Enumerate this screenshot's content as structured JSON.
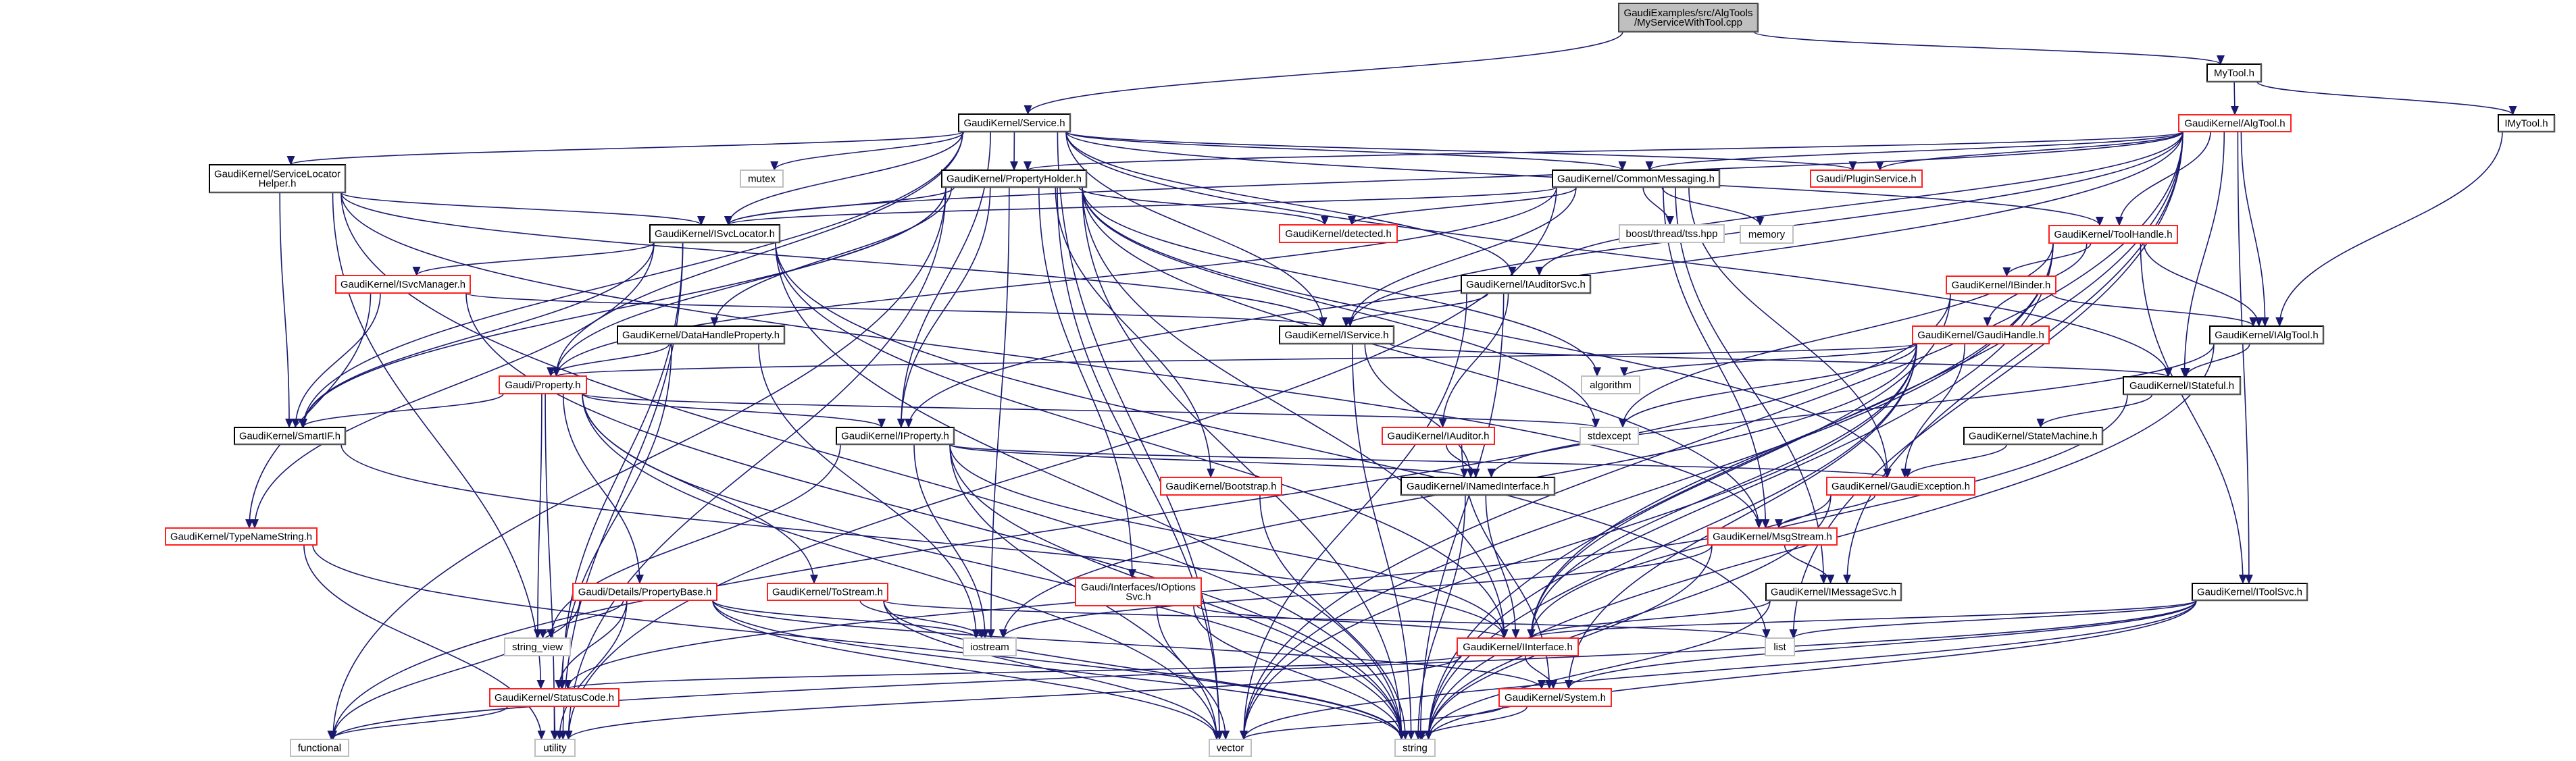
{
  "graph": {
    "edge_color": "#191970",
    "border_colors": {
      "normal": "#000000",
      "incomplete": "#ff0000",
      "system": "#bfbfbf",
      "root_fill": "#bfbfbf"
    },
    "nodes": [
      {
        "id": "root",
        "label": [
          "GaudiExamples/src/AlgTools",
          "/MyServiceWithTool.cpp"
        ],
        "style": "root"
      },
      {
        "id": "mytool",
        "label": [
          "MyTool.h"
        ],
        "style": "normal"
      },
      {
        "id": "imytool",
        "label": [
          "IMyTool.h"
        ],
        "style": "normal"
      },
      {
        "id": "algtool",
        "label": [
          "GaudiKernel/AlgTool.h"
        ],
        "style": "incomplete"
      },
      {
        "id": "service",
        "label": [
          "GaudiKernel/Service.h"
        ],
        "style": "normal"
      },
      {
        "id": "slh",
        "label": [
          "GaudiKernel/ServiceLocator",
          "Helper.h"
        ],
        "style": "normal"
      },
      {
        "id": "mutex",
        "label": [
          "mutex"
        ],
        "style": "system"
      },
      {
        "id": "propholder",
        "label": [
          "GaudiKernel/PropertyHolder.h"
        ],
        "style": "normal"
      },
      {
        "id": "commsg",
        "label": [
          "GaudiKernel/CommonMessaging.h"
        ],
        "style": "normal"
      },
      {
        "id": "plugin",
        "label": [
          "Gaudi/PluginService.h"
        ],
        "style": "incomplete"
      },
      {
        "id": "isvcloc",
        "label": [
          "GaudiKernel/ISvcLocator.h"
        ],
        "style": "normal"
      },
      {
        "id": "detected",
        "label": [
          "GaudiKernel/detected.h"
        ],
        "style": "incomplete"
      },
      {
        "id": "boost",
        "label": [
          "boost/thread/tss.hpp"
        ],
        "style": "system"
      },
      {
        "id": "memory",
        "label": [
          "memory"
        ],
        "style": "system"
      },
      {
        "id": "toolhandle",
        "label": [
          "GaudiKernel/ToolHandle.h"
        ],
        "style": "incomplete"
      },
      {
        "id": "isvcmgr",
        "label": [
          "GaudiKernel/ISvcManager.h"
        ],
        "style": "incomplete"
      },
      {
        "id": "iauditorsvc",
        "label": [
          "GaudiKernel/IAuditorSvc.h"
        ],
        "style": "normal"
      },
      {
        "id": "ibinder",
        "label": [
          "GaudiKernel/IBinder.h"
        ],
        "style": "incomplete"
      },
      {
        "id": "dhp",
        "label": [
          "GaudiKernel/DataHandleProperty.h"
        ],
        "style": "normal"
      },
      {
        "id": "iservice",
        "label": [
          "GaudiKernel/IService.h"
        ],
        "style": "normal"
      },
      {
        "id": "gaudihandle",
        "label": [
          "GaudiKernel/GaudiHandle.h"
        ],
        "style": "incomplete"
      },
      {
        "id": "ialgtool",
        "label": [
          "GaudiKernel/IAlgTool.h"
        ],
        "style": "normal"
      },
      {
        "id": "property",
        "label": [
          "Gaudi/Property.h"
        ],
        "style": "incomplete"
      },
      {
        "id": "algorithm",
        "label": [
          "algorithm"
        ],
        "style": "system"
      },
      {
        "id": "istateful",
        "label": [
          "GaudiKernel/IStateful.h"
        ],
        "style": "normal"
      },
      {
        "id": "smartif",
        "label": [
          "GaudiKernel/SmartIF.h"
        ],
        "style": "normal"
      },
      {
        "id": "iproperty",
        "label": [
          "GaudiKernel/IProperty.h"
        ],
        "style": "normal"
      },
      {
        "id": "iauditor",
        "label": [
          "GaudiKernel/IAuditor.h"
        ],
        "style": "incomplete"
      },
      {
        "id": "stdexcept",
        "label": [
          "stdexcept"
        ],
        "style": "system"
      },
      {
        "id": "statemachine",
        "label": [
          "GaudiKernel/StateMachine.h"
        ],
        "style": "normal"
      },
      {
        "id": "bootstrap",
        "label": [
          "GaudiKernel/Bootstrap.h"
        ],
        "style": "incomplete"
      },
      {
        "id": "inamed",
        "label": [
          "GaudiKernel/INamedInterface.h"
        ],
        "style": "normal"
      },
      {
        "id": "gexc",
        "label": [
          "GaudiKernel/GaudiException.h"
        ],
        "style": "incomplete"
      },
      {
        "id": "typename",
        "label": [
          "GaudiKernel/TypeNameString.h"
        ],
        "style": "incomplete"
      },
      {
        "id": "msgstream",
        "label": [
          "GaudiKernel/MsgStream.h"
        ],
        "style": "incomplete"
      },
      {
        "id": "propbase",
        "label": [
          "Gaudi/Details/PropertyBase.h"
        ],
        "style": "incomplete"
      },
      {
        "id": "tostream",
        "label": [
          "GaudiKernel/ToStream.h"
        ],
        "style": "incomplete"
      },
      {
        "id": "ioptions",
        "label": [
          "Gaudi/Interfaces/IOptions",
          "Svc.h"
        ],
        "style": "incomplete"
      },
      {
        "id": "imsgsvc",
        "label": [
          "GaudiKernel/IMessageSvc.h"
        ],
        "style": "normal"
      },
      {
        "id": "itoolsvc",
        "label": [
          "GaudiKernel/IToolSvc.h"
        ],
        "style": "normal"
      },
      {
        "id": "stringview",
        "label": [
          "string_view"
        ],
        "style": "system"
      },
      {
        "id": "iostream",
        "label": [
          "iostream"
        ],
        "style": "system"
      },
      {
        "id": "iinterface",
        "label": [
          "GaudiKernel/IInterface.h"
        ],
        "style": "incomplete"
      },
      {
        "id": "list",
        "label": [
          "list"
        ],
        "style": "system"
      },
      {
        "id": "statuscode",
        "label": [
          "GaudiKernel/StatusCode.h"
        ],
        "style": "incomplete"
      },
      {
        "id": "system",
        "label": [
          "GaudiKernel/System.h"
        ],
        "style": "incomplete"
      },
      {
        "id": "functional",
        "label": [
          "functional"
        ],
        "style": "system"
      },
      {
        "id": "utility",
        "label": [
          "utility"
        ],
        "style": "system"
      },
      {
        "id": "vector",
        "label": [
          "vector"
        ],
        "style": "system"
      },
      {
        "id": "string",
        "label": [
          "string"
        ],
        "style": "system"
      }
    ],
    "edges": [
      [
        "root",
        "service"
      ],
      [
        "root",
        "mytool"
      ],
      [
        "mytool",
        "algtool"
      ],
      [
        "mytool",
        "imytool"
      ],
      [
        "imytool",
        "ialgtool"
      ],
      [
        "service",
        "slh"
      ],
      [
        "service",
        "mutex"
      ],
      [
        "service",
        "propholder"
      ],
      [
        "service",
        "isvcloc"
      ],
      [
        "service",
        "iservice"
      ],
      [
        "service",
        "iproperty"
      ],
      [
        "service",
        "property"
      ],
      [
        "service",
        "smartif"
      ],
      [
        "service",
        "commsg"
      ],
      [
        "service",
        "iauditorsvc"
      ],
      [
        "service",
        "plugin"
      ],
      [
        "service",
        "toolhandle"
      ],
      [
        "service",
        "istateful"
      ],
      [
        "service",
        "vector"
      ],
      [
        "slh",
        "isvcloc"
      ],
      [
        "slh",
        "iservice"
      ],
      [
        "slh",
        "smartif"
      ],
      [
        "slh",
        "msgstream"
      ],
      [
        "slh",
        "statuscode"
      ],
      [
        "slh",
        "string"
      ],
      [
        "propholder",
        "isvcloc"
      ],
      [
        "propholder",
        "detected"
      ],
      [
        "propholder",
        "property"
      ],
      [
        "propholder",
        "iproperty"
      ],
      [
        "propholder",
        "dhp"
      ],
      [
        "propholder",
        "bootstrap"
      ],
      [
        "propholder",
        "ioptions"
      ],
      [
        "propholder",
        "gexc"
      ],
      [
        "propholder",
        "iinterface"
      ],
      [
        "propholder",
        "msgstream"
      ],
      [
        "propholder",
        "algorithm"
      ],
      [
        "propholder",
        "iostream"
      ],
      [
        "propholder",
        "stdexcept"
      ],
      [
        "propholder",
        "string"
      ],
      [
        "propholder",
        "vector"
      ],
      [
        "propholder",
        "utility"
      ],
      [
        "propholder",
        "functional"
      ],
      [
        "propholder",
        "smartif"
      ],
      [
        "commsg",
        "isvcloc"
      ],
      [
        "commsg",
        "iservice"
      ],
      [
        "commsg",
        "detected"
      ],
      [
        "commsg",
        "boost"
      ],
      [
        "commsg",
        "memory"
      ],
      [
        "commsg",
        "msgstream"
      ],
      [
        "commsg",
        "imsgsvc"
      ],
      [
        "commsg",
        "gexc"
      ],
      [
        "commsg",
        "property"
      ],
      [
        "commsg",
        "utility"
      ],
      [
        "isvcloc",
        "isvcmgr"
      ],
      [
        "isvcloc",
        "smartif"
      ],
      [
        "isvcloc",
        "typename"
      ],
      [
        "isvcloc",
        "iinterface"
      ],
      [
        "isvcloc",
        "statuscode"
      ],
      [
        "isvcloc",
        "list"
      ],
      [
        "isvcloc",
        "string"
      ],
      [
        "isvcloc",
        "utility"
      ],
      [
        "isvcmgr",
        "iservice"
      ],
      [
        "isvcmgr",
        "smartif"
      ],
      [
        "isvcmgr",
        "typename"
      ],
      [
        "isvcmgr",
        "string"
      ],
      [
        "dhp",
        "property"
      ],
      [
        "dhp",
        "statuscode"
      ],
      [
        "dhp",
        "iostream"
      ],
      [
        "property",
        "smartif"
      ],
      [
        "property",
        "iproperty"
      ],
      [
        "property",
        "propbase"
      ],
      [
        "property",
        "tostream"
      ],
      [
        "property",
        "stringview"
      ],
      [
        "property",
        "stdexcept"
      ],
      [
        "property",
        "string"
      ],
      [
        "property",
        "utility"
      ],
      [
        "property",
        "vector"
      ],
      [
        "iauditorsvc",
        "iservice"
      ],
      [
        "iauditorsvc",
        "iauditor"
      ],
      [
        "iauditorsvc",
        "string"
      ],
      [
        "iauditorsvc",
        "vector"
      ],
      [
        "iservice",
        "inamed"
      ],
      [
        "iservice",
        "istateful"
      ],
      [
        "iservice",
        "string"
      ],
      [
        "iauditor",
        "inamed"
      ],
      [
        "iauditor",
        "system"
      ],
      [
        "iproperty",
        "iinterface"
      ],
      [
        "iproperty",
        "inamed"
      ],
      [
        "iproperty",
        "gexc"
      ],
      [
        "iproperty",
        "stringview"
      ],
      [
        "iproperty",
        "iostream"
      ],
      [
        "iproperty",
        "string"
      ],
      [
        "iproperty",
        "vector"
      ],
      [
        "smartif",
        "iinterface"
      ],
      [
        "typename",
        "string"
      ],
      [
        "typename",
        "utility"
      ],
      [
        "propbase",
        "stringview"
      ],
      [
        "propbase",
        "statuscode"
      ],
      [
        "propbase",
        "functional"
      ],
      [
        "propbase",
        "utility"
      ],
      [
        "propbase",
        "string"
      ],
      [
        "propbase",
        "iostream"
      ],
      [
        "propbase",
        "system"
      ],
      [
        "propbase",
        "vector"
      ],
      [
        "tostream",
        "iostream"
      ],
      [
        "tostream",
        "list"
      ],
      [
        "tostream",
        "string"
      ],
      [
        "tostream",
        "vector"
      ],
      [
        "bootstrap",
        "string"
      ],
      [
        "ioptions",
        "string"
      ],
      [
        "ioptions",
        "vector"
      ],
      [
        "ioptions",
        "iinterface"
      ],
      [
        "inamed",
        "iinterface"
      ],
      [
        "inamed",
        "string"
      ],
      [
        "iinterface",
        "statuscode"
      ],
      [
        "iinterface",
        "system"
      ],
      [
        "iinterface",
        "utility"
      ],
      [
        "statuscode",
        "functional"
      ],
      [
        "statuscode",
        "utility"
      ],
      [
        "system",
        "string"
      ],
      [
        "system",
        "vector"
      ],
      [
        "gexc",
        "msgstream"
      ],
      [
        "gexc",
        "statuscode"
      ],
      [
        "gexc",
        "string"
      ],
      [
        "msgstream",
        "imsgsvc"
      ],
      [
        "msgstream",
        "iostream"
      ],
      [
        "msgstream",
        "string"
      ],
      [
        "imsgsvc",
        "iinterface"
      ],
      [
        "imsgsvc",
        "string"
      ],
      [
        "statemachine",
        "gexc"
      ],
      [
        "istateful",
        "iinterface"
      ],
      [
        "istateful",
        "statemachine"
      ],
      [
        "toolhandle",
        "ibinder"
      ],
      [
        "toolhandle",
        "gaudihandle"
      ],
      [
        "toolhandle",
        "ialgtool"
      ],
      [
        "toolhandle",
        "itoolsvc"
      ],
      [
        "toolhandle",
        "stdexcept"
      ],
      [
        "toolhandle",
        "string"
      ],
      [
        "toolhandle",
        "vector"
      ],
      [
        "toolhandle",
        "iinterface"
      ],
      [
        "ibinder",
        "ialgtool"
      ],
      [
        "ibinder",
        "iinterface"
      ],
      [
        "ibinder",
        "functional"
      ],
      [
        "gaudihandle",
        "property"
      ],
      [
        "gaudihandle",
        "gexc"
      ],
      [
        "gaudihandle",
        "iinterface"
      ],
      [
        "gaudihandle",
        "system"
      ],
      [
        "gaudihandle",
        "algorithm"
      ],
      [
        "gaudihandle",
        "iostream"
      ],
      [
        "gaudihandle",
        "stdexcept"
      ],
      [
        "gaudihandle",
        "string"
      ],
      [
        "gaudihandle",
        "vector"
      ],
      [
        "ialgtool",
        "inamed"
      ],
      [
        "ialgtool",
        "istateful"
      ],
      [
        "ialgtool",
        "string"
      ],
      [
        "itoolsvc",
        "iinterface"
      ],
      [
        "itoolsvc",
        "system"
      ],
      [
        "itoolsvc",
        "list"
      ],
      [
        "itoolsvc",
        "string"
      ],
      [
        "itoolsvc",
        "vector"
      ],
      [
        "itoolsvc",
        "functional"
      ],
      [
        "algtool",
        "plugin"
      ],
      [
        "algtool",
        "commsg"
      ],
      [
        "algtool",
        "propholder"
      ],
      [
        "algtool",
        "isvcloc"
      ],
      [
        "algtool",
        "iservice"
      ],
      [
        "algtool",
        "ialgtool"
      ],
      [
        "algtool",
        "istateful"
      ],
      [
        "algtool",
        "toolhandle"
      ],
      [
        "algtool",
        "iproperty"
      ],
      [
        "algtool",
        "imsgsvc"
      ],
      [
        "algtool",
        "itoolsvc"
      ],
      [
        "algtool",
        "iauditorsvc"
      ],
      [
        "algtool",
        "list"
      ],
      [
        "algtool",
        "string"
      ],
      [
        "algtool",
        "vector"
      ]
    ]
  }
}
